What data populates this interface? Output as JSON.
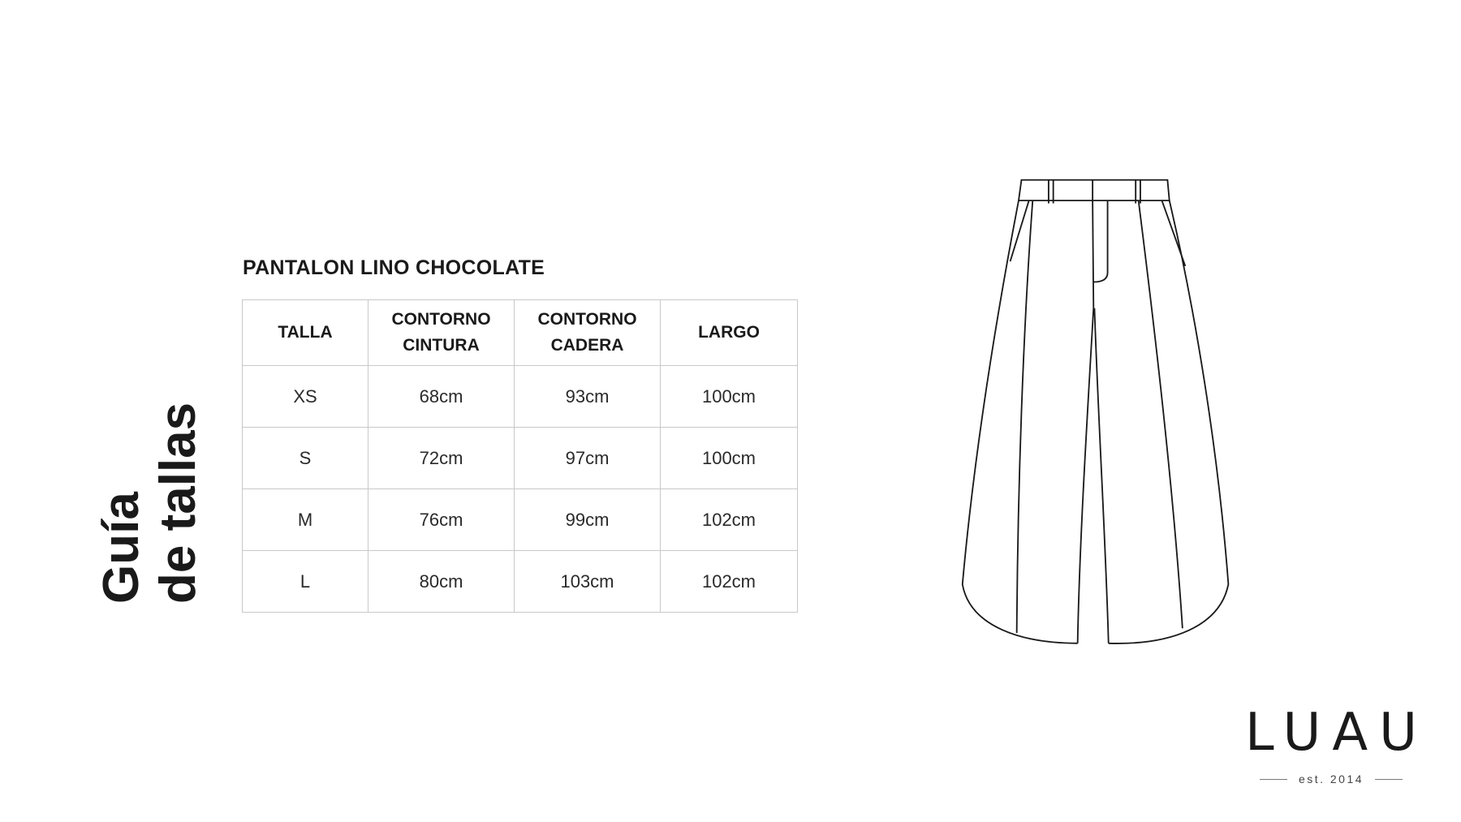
{
  "heading": {
    "line1": "Guía",
    "line2": "de tallas"
  },
  "product_title": "PANTALON LINO CHOCOLATE",
  "table": {
    "headers": [
      [
        "TALLA"
      ],
      [
        "CONTORNO",
        "CINTURA"
      ],
      [
        "CONTORNO",
        "CADERA"
      ],
      [
        "LARGO"
      ]
    ],
    "rows": [
      [
        "XS",
        "68cm",
        "93cm",
        "100cm"
      ],
      [
        "S",
        "72cm",
        "97cm",
        "100cm"
      ],
      [
        "M",
        "76cm",
        "99cm",
        "102cm"
      ],
      [
        "L",
        "80cm",
        "103cm",
        "102cm"
      ]
    ]
  },
  "illustration": "pants-line-drawing",
  "logo": {
    "word": "LUAU",
    "tagline": "est. 2014"
  }
}
